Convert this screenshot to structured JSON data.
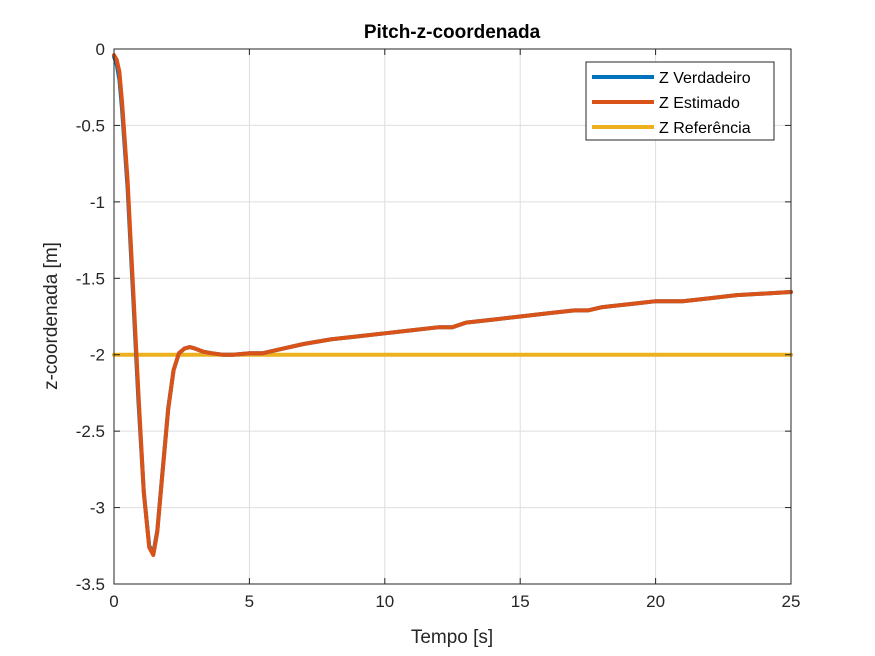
{
  "chart_data": {
    "type": "line",
    "title": "Pitch-z-coordenada",
    "xlabel": "Tempo [s]",
    "ylabel": "z-coordenada [m]",
    "xlim": [
      0,
      25
    ],
    "ylim": [
      -3.5,
      0
    ],
    "xticks": [
      0,
      5,
      10,
      15,
      20,
      25
    ],
    "yticks": [
      0,
      -0.5,
      -1,
      -1.5,
      -2,
      -2.5,
      -3,
      -3.5
    ],
    "xtick_labels": [
      "0",
      "5",
      "10",
      "15",
      "20",
      "25"
    ],
    "ytick_labels": [
      "0",
      "-0.5",
      "-1",
      "-1.5",
      "-2",
      "-2.5",
      "-3",
      "-3.5"
    ],
    "grid": true,
    "legend_position": "top-right",
    "series": [
      {
        "name": "Z Verdadeiro",
        "color": "#0072BD",
        "x": [
          0,
          0.1,
          0.2,
          0.3,
          0.5,
          0.7,
          0.9,
          1.1,
          1.3,
          1.45,
          1.6,
          1.8,
          2.0,
          2.2,
          2.4,
          2.6,
          2.8,
          3.0,
          3.3,
          3.6,
          4.0,
          4.4,
          5.0,
          5.5,
          6.0,
          7,
          8,
          9,
          10,
          11,
          12,
          12.5,
          13,
          14,
          15,
          16,
          17,
          17.5,
          18,
          19,
          20,
          20.5,
          21,
          22,
          23,
          24,
          25
        ],
        "y": [
          -0.05,
          -0.1,
          -0.2,
          -0.4,
          -0.9,
          -1.6,
          -2.3,
          -2.9,
          -3.25,
          -3.3,
          -3.15,
          -2.75,
          -2.35,
          -2.1,
          -1.99,
          -1.96,
          -1.95,
          -1.96,
          -1.98,
          -1.99,
          -2.0,
          -2.0,
          -1.99,
          -1.99,
          -1.97,
          -1.93,
          -1.9,
          -1.88,
          -1.86,
          -1.84,
          -1.82,
          -1.82,
          -1.79,
          -1.77,
          -1.75,
          -1.73,
          -1.71,
          -1.71,
          -1.69,
          -1.67,
          -1.65,
          -1.65,
          -1.65,
          -1.63,
          -1.61,
          -1.6,
          -1.59
        ]
      },
      {
        "name": "Z Estimado",
        "color": "#D95319",
        "x": [
          0,
          0.1,
          0.2,
          0.3,
          0.5,
          0.7,
          0.9,
          1.1,
          1.3,
          1.45,
          1.6,
          1.8,
          2.0,
          2.2,
          2.4,
          2.6,
          2.8,
          3.0,
          3.3,
          3.6,
          4.0,
          4.4,
          5.0,
          5.5,
          6.0,
          7,
          8,
          9,
          10,
          11,
          12,
          12.5,
          13,
          14,
          15,
          16,
          17,
          17.5,
          18,
          19,
          20,
          20.5,
          21,
          22,
          23,
          24,
          25
        ],
        "y": [
          -0.04,
          -0.07,
          -0.15,
          -0.35,
          -0.85,
          -1.55,
          -2.25,
          -2.9,
          -3.26,
          -3.31,
          -3.16,
          -2.76,
          -2.36,
          -2.1,
          -1.99,
          -1.96,
          -1.95,
          -1.96,
          -1.98,
          -1.99,
          -2.0,
          -2.0,
          -1.99,
          -1.99,
          -1.97,
          -1.93,
          -1.9,
          -1.88,
          -1.86,
          -1.84,
          -1.82,
          -1.82,
          -1.79,
          -1.77,
          -1.75,
          -1.73,
          -1.71,
          -1.71,
          -1.69,
          -1.67,
          -1.65,
          -1.65,
          -1.65,
          -1.63,
          -1.61,
          -1.6,
          -1.59
        ]
      },
      {
        "name": "Z Referência",
        "color": "#EDB120",
        "x": [
          0,
          25
        ],
        "y": [
          -2,
          -2
        ]
      }
    ]
  }
}
